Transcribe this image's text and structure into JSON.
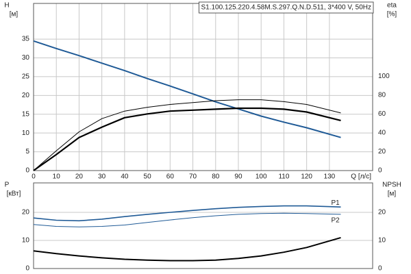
{
  "chart_data": [
    {
      "type": "line",
      "title": "S1.100.125.220.4.58M.S.297.Q.N.D.511, 3*400 V, 50Hz",
      "y_label": "H",
      "y_unit": "[м]",
      "y2_label": "eta",
      "y2_unit": "[%]",
      "x_label": "Q [л/с]",
      "xlim": [
        0,
        149
      ],
      "xticks": [
        0,
        10,
        20,
        30,
        40,
        50,
        60,
        70,
        80,
        90,
        100,
        110,
        120,
        130
      ],
      "ylim": [
        0,
        44.5
      ],
      "yticks": [
        0,
        5,
        10,
        15,
        20,
        25,
        30,
        35
      ],
      "y2lim": [
        0,
        177
      ],
      "y2ticks": [
        0,
        20,
        40,
        60,
        80,
        100
      ],
      "grid": true,
      "x": [
        0,
        10,
        20,
        30,
        40,
        50,
        60,
        70,
        80,
        90,
        100,
        110,
        120,
        135
      ],
      "series": [
        {
          "color": "#1f5a96",
          "linewidth": 2,
          "values": [
            34.5,
            32.5,
            30.6,
            28.6,
            26.6,
            24.5,
            22.5,
            20.4,
            18.3,
            16.4,
            14.5,
            12.9,
            11.4,
            8.8
          ]
        },
        {
          "color": "#000000",
          "linewidth": 1,
          "axis": "y2",
          "values": [
            0,
            21,
            41,
            55,
            63,
            67,
            70,
            72,
            74,
            75,
            75,
            73,
            70,
            61
          ]
        },
        {
          "color": "#000000",
          "linewidth": 2.2,
          "axis": "y2",
          "values": [
            0,
            17,
            35,
            46,
            56,
            60,
            63,
            64,
            65,
            66,
            66,
            65,
            62,
            53
          ]
        }
      ]
    },
    {
      "type": "line",
      "y_label": "P",
      "y_unit": "[кВт]",
      "y2_label": "NPSH",
      "y2_unit": "[м]",
      "xlim": [
        0,
        149
      ],
      "ylim": [
        0,
        30.5
      ],
      "yticks": [
        0,
        10,
        20
      ],
      "y2lim": [
        0,
        30.5
      ],
      "y2ticks": [
        0,
        10,
        20
      ],
      "grid": true,
      "x": [
        0,
        10,
        20,
        30,
        40,
        50,
        60,
        70,
        80,
        90,
        100,
        110,
        120,
        135
      ],
      "series": [
        {
          "name": "P1",
          "color": "#1f5a96",
          "linewidth": 1.6,
          "values": [
            18,
            17.2,
            17,
            17.6,
            18.5,
            19.3,
            20,
            20.7,
            21.3,
            21.8,
            22.1,
            22.3,
            22.3,
            21.9
          ]
        },
        {
          "name": "P2",
          "color": "#1f5a96",
          "linewidth": 1,
          "values": [
            15.7,
            15,
            14.8,
            15,
            15.5,
            16.4,
            17.3,
            18.1,
            18.8,
            19.3,
            19.6,
            19.7,
            19.6,
            19.3
          ]
        },
        {
          "color": "#000000",
          "linewidth": 2,
          "axis": "y2",
          "values": [
            6.3,
            5.3,
            4.5,
            3.8,
            3.3,
            3.0,
            2.8,
            2.8,
            3.0,
            3.6,
            4.5,
            5.8,
            7.5,
            11
          ]
        }
      ]
    }
  ]
}
